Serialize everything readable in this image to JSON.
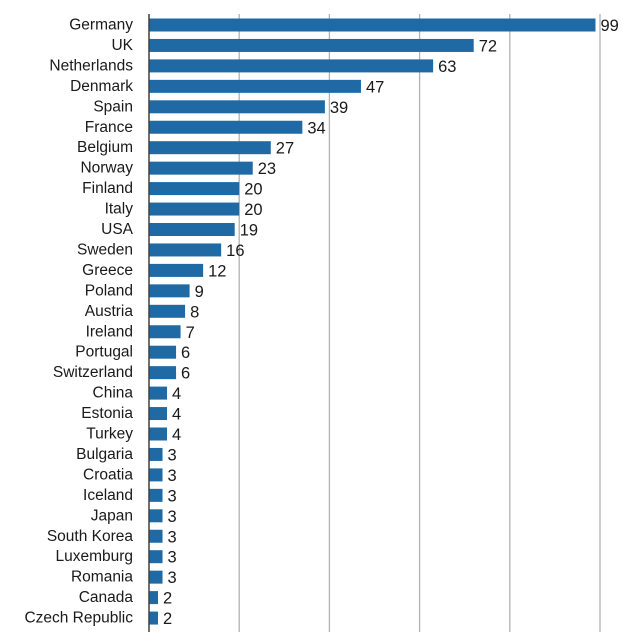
{
  "chart_data": {
    "type": "bar",
    "orientation": "horizontal",
    "categories": [
      "Germany",
      "UK",
      "Netherlands",
      "Denmark",
      "Spain",
      "France",
      "Belgium",
      "Norway",
      "Finland",
      "Italy",
      "USA",
      "Sweden",
      "Greece",
      "Poland",
      "Austria",
      "Ireland",
      "Portugal",
      "Switzerland",
      "China",
      "Estonia",
      "Turkey",
      "Bulgaria",
      "Croatia",
      "Iceland",
      "Japan",
      "South Korea",
      "Luxemburg",
      "Romania",
      "Canada",
      "Czech Republic"
    ],
    "values": [
      99,
      72,
      63,
      47,
      39,
      34,
      27,
      23,
      20,
      20,
      19,
      16,
      12,
      9,
      8,
      7,
      6,
      6,
      4,
      4,
      4,
      3,
      3,
      3,
      3,
      3,
      3,
      3,
      2,
      2
    ],
    "title": "",
    "xlabel": "",
    "ylabel": "",
    "xlim": [
      0,
      100
    ],
    "grid": "vertical",
    "bar_color": "#1f6aa5",
    "grid_color": "#b3b3b3",
    "axis_color": "#404040"
  }
}
